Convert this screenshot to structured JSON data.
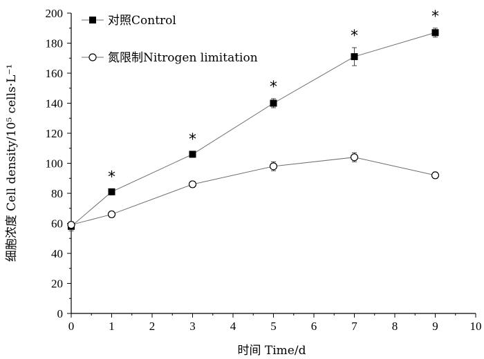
{
  "chart_data": {
    "type": "line",
    "xlabel": "时间 Time/d",
    "ylabel": "细胞浓度 Cell density/10⁵ cells·L⁻¹",
    "xlim": [
      0,
      10
    ],
    "ylim": [
      0,
      200
    ],
    "x_ticks": [
      "0",
      "1",
      "2",
      "3",
      "4",
      "5",
      "6",
      "7",
      "8",
      "9",
      "10"
    ],
    "y_ticks": [
      "0",
      "20",
      "40",
      "60",
      "80",
      "100",
      "120",
      "140",
      "160",
      "180",
      "200"
    ],
    "x": [
      0,
      1,
      3,
      5,
      7,
      9
    ],
    "grid": false,
    "legend_position": "top-left",
    "series": [
      {
        "name": "对照Control",
        "marker": "filled-square",
        "values": [
          58,
          81,
          106,
          140,
          171,
          187
        ],
        "errors": [
          3,
          2,
          2,
          3,
          6,
          3
        ]
      },
      {
        "name": "氮限制Nitrogen limitation",
        "marker": "open-circle",
        "values": [
          59,
          66,
          86,
          98,
          104,
          92
        ],
        "errors": [
          2,
          2,
          2,
          3,
          3,
          2
        ]
      }
    ],
    "significance": {
      "symbol": "*",
      "x": [
        1,
        3,
        5,
        7,
        9
      ]
    },
    "colors": {
      "line": "#6e6e6e",
      "marker": "#000000",
      "axis": "#000000"
    }
  }
}
